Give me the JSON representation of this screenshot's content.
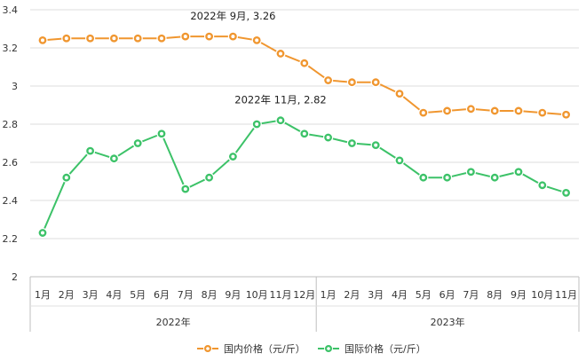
{
  "chart_data": {
    "type": "line",
    "title": "",
    "xlabel": "",
    "ylabel": "",
    "ylim": [
      2,
      3.4
    ],
    "yticks": [
      "2",
      "2.2",
      "2.4",
      "2.6",
      "2.8",
      "3",
      "3.2",
      "3.4"
    ],
    "grid": true,
    "legend_position": "bottom",
    "groups": [
      {
        "label": "2022年",
        "months": [
          "1月",
          "2月",
          "3月",
          "4月",
          "5月",
          "6月",
          "7月",
          "8月",
          "9月",
          "10月",
          "11月",
          "12月"
        ]
      },
      {
        "label": "2023年",
        "months": [
          "1月",
          "2月",
          "3月",
          "4月",
          "5月",
          "6月",
          "7月",
          "8月",
          "9月",
          "10月",
          "11月"
        ]
      }
    ],
    "series": [
      {
        "name": "国内价格（元/斤）",
        "color": "#f0962f",
        "values": [
          3.24,
          3.25,
          3.25,
          3.25,
          3.25,
          3.25,
          3.26,
          3.26,
          3.26,
          3.24,
          3.17,
          3.12,
          3.03,
          3.02,
          3.02,
          2.96,
          2.86,
          2.87,
          2.88,
          2.87,
          2.87,
          2.86,
          2.85
        ]
      },
      {
        "name": "国际价格（元/斤）",
        "color": "#3cc268",
        "values": [
          2.23,
          2.52,
          2.66,
          2.62,
          2.7,
          2.75,
          2.46,
          2.52,
          2.63,
          2.8,
          2.82,
          2.75,
          2.73,
          2.7,
          2.69,
          2.61,
          2.52,
          2.52,
          2.55,
          2.52,
          2.55,
          2.48,
          2.44
        ]
      }
    ],
    "annotations": [
      {
        "text": "2022年 9月, 3.26",
        "series": 0,
        "index": 8
      },
      {
        "text": "2022年 11月, 2.82",
        "series": 1,
        "index": 10
      }
    ]
  }
}
